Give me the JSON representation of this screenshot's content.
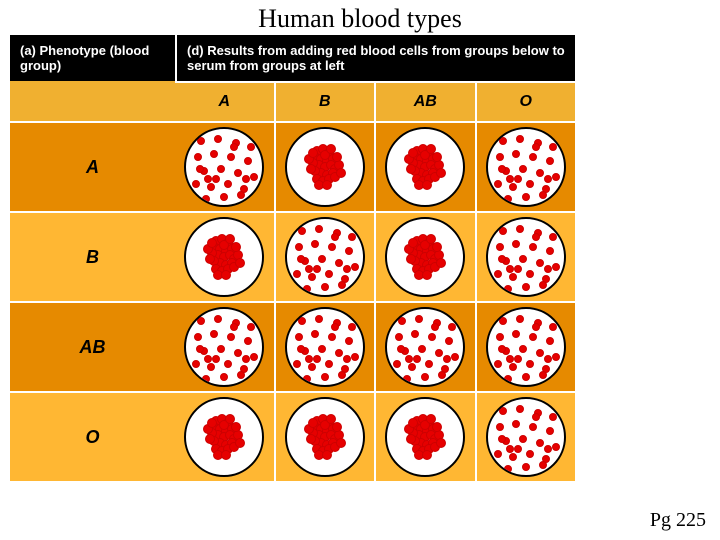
{
  "title": {
    "text": "Human blood types",
    "fontsize": 26
  },
  "footer": {
    "text": "Pg 225"
  },
  "colors": {
    "black": "#000000",
    "white": "#ffffff",
    "orange_header": "#f0b030",
    "orange_dark": "#e68a00",
    "orange_light": "#ffb733",
    "red": "#e60000",
    "red_dark": "#cc0000"
  },
  "headers": {
    "a": "(a) Phenotype (blood group)",
    "d": "(d) Results from adding red blood cells from groups below to serum from groups at left"
  },
  "columns": [
    "A",
    "B",
    "AB",
    "O"
  ],
  "rows": [
    {
      "label": "A",
      "bg_key": "orange_dark"
    },
    {
      "label": "B",
      "bg_key": "orange_light"
    },
    {
      "label": "AB",
      "bg_key": "orange_dark"
    },
    {
      "label": "O",
      "bg_key": "orange_light"
    }
  ],
  "dot_style": {
    "dispersed_radius": 4,
    "clumped_radius": 5
  },
  "agglutination": {
    "A": {
      "A": "dispersed",
      "B": "clumped",
      "AB": "clumped",
      "O": "dispersed"
    },
    "B": {
      "A": "clumped",
      "B": "dispersed",
      "AB": "clumped",
      "O": "dispersed"
    },
    "AB": {
      "A": "dispersed",
      "B": "dispersed",
      "AB": "dispersed",
      "O": "dispersed"
    },
    "O": {
      "A": "clumped",
      "B": "clumped",
      "AB": "clumped",
      "O": "dispersed"
    }
  },
  "patterns": {
    "dispersed": [
      [
        15,
        12
      ],
      [
        32,
        10
      ],
      [
        50,
        14
      ],
      [
        65,
        18
      ],
      [
        12,
        28
      ],
      [
        28,
        25
      ],
      [
        45,
        28
      ],
      [
        62,
        32
      ],
      [
        18,
        42
      ],
      [
        35,
        40
      ],
      [
        52,
        44
      ],
      [
        68,
        48
      ],
      [
        10,
        55
      ],
      [
        25,
        58
      ],
      [
        42,
        55
      ],
      [
        58,
        60
      ],
      [
        20,
        70
      ],
      [
        38,
        68
      ],
      [
        55,
        66
      ],
      [
        48,
        18
      ],
      [
        22,
        50
      ],
      [
        60,
        50
      ],
      [
        30,
        50
      ],
      [
        14,
        40
      ]
    ],
    "clumped": [
      [
        30,
        22
      ],
      [
        36,
        20
      ],
      [
        42,
        24
      ],
      [
        28,
        28
      ],
      [
        34,
        30
      ],
      [
        40,
        32
      ],
      [
        46,
        30
      ],
      [
        32,
        36
      ],
      [
        38,
        38
      ],
      [
        44,
        36
      ],
      [
        26,
        34
      ],
      [
        48,
        40
      ],
      [
        34,
        44
      ],
      [
        40,
        46
      ],
      [
        46,
        44
      ],
      [
        28,
        42
      ],
      [
        52,
        36
      ],
      [
        30,
        50
      ],
      [
        36,
        52
      ],
      [
        42,
        50
      ],
      [
        24,
        40
      ],
      [
        50,
        28
      ],
      [
        22,
        30
      ],
      [
        48,
        48
      ],
      [
        38,
        26
      ],
      [
        44,
        20
      ],
      [
        26,
        24
      ],
      [
        54,
        44
      ],
      [
        32,
        56
      ],
      [
        40,
        56
      ]
    ]
  }
}
